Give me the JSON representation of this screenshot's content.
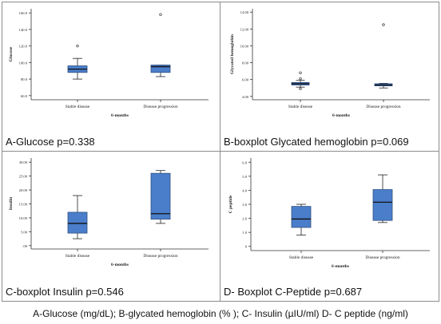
{
  "panels": [
    {
      "caption": "A-Glucose  p=0.338"
    },
    {
      "caption": "B-boxplot Glycated hemoglobin p=0.069"
    },
    {
      "caption": "C-boxplot Insulin p=0.546"
    },
    {
      "caption": "D- Boxplot C-Peptide p=0.687"
    }
  ],
  "footnote": "A-Glucose (mg/dL); B-glycated hemoglobin (% ); C- Insulin (µIU/ml) D- C peptide  (ng/ml)",
  "colors": {
    "box_fill": "#4a7ecb",
    "box_stroke": "#2f4f7f",
    "border": "#8c8c8c"
  },
  "chart_data": [
    {
      "type": "boxplot",
      "ylabel": "Glucose",
      "xlabel": "6-months",
      "categories": [
        "Stable disease",
        "Disease progression"
      ],
      "yticks": [
        60.0,
        80.0,
        100.0,
        120.0,
        140.0,
        160.0
      ],
      "ytick_labels": [
        "60.0",
        "80.0",
        "100.0",
        "120.0",
        "140.0",
        "160.0"
      ],
      "ylim": [
        55,
        165
      ],
      "boxes": [
        {
          "whisker_low": 80,
          "q1": 88,
          "median": 92,
          "q3": 96,
          "whisker_high": 105,
          "outliers": [
            120
          ]
        },
        {
          "whisker_low": 83,
          "q1": 88,
          "median": 95,
          "q3": 97,
          "whisker_high": 97,
          "outliers": [
            158
          ]
        }
      ]
    },
    {
      "type": "boxplot",
      "ylabel": "Glycated hemoglobin",
      "xlabel": "6-months",
      "categories": [
        "Stable disease",
        "Disease progression"
      ],
      "yticks": [
        4.0,
        6.0,
        8.0,
        10.0,
        12.0,
        14.0
      ],
      "ytick_labels": [
        "4.00",
        "6.00",
        "8.00",
        "10.00",
        "12.00",
        "14.00"
      ],
      "ylim": [
        3.6,
        14.4
      ],
      "boxes": [
        {
          "whisker_low": 5.1,
          "q1": 5.35,
          "median": 5.5,
          "q3": 5.65,
          "whisker_high": 5.9,
          "outliers": [
            4.9,
            6.1,
            6.8
          ]
        },
        {
          "whisker_low": 5.0,
          "q1": 5.25,
          "median": 5.35,
          "q3": 5.5,
          "whisker_high": 5.55,
          "outliers": [
            12.5
          ]
        }
      ]
    },
    {
      "type": "boxplot",
      "ylabel": "Insulin",
      "xlabel": "6-months",
      "categories": [
        "Stable disease",
        "Disease progression"
      ],
      "yticks": [
        0,
        5,
        10,
        15,
        20,
        25,
        30
      ],
      "ytick_labels": [
        ".00",
        "5.00",
        "10.00",
        "15.00",
        "20.00",
        "25.00",
        "30.00"
      ],
      "ylim": [
        -1.2,
        31.5
      ],
      "boxes": [
        {
          "whisker_low": 2.5,
          "q1": 4.5,
          "median": 8.0,
          "q3": 12.0,
          "whisker_high": 18.0,
          "outliers": []
        },
        {
          "whisker_low": 8.0,
          "q1": 9.5,
          "median": 11.5,
          "q3": 26.0,
          "whisker_high": 27.0,
          "outliers": []
        }
      ]
    },
    {
      "type": "boxplot",
      "ylabel": "C peptide",
      "xlabel": "6-months",
      "categories": [
        "Stable disease",
        "Disease progression"
      ],
      "yticks": [
        0,
        1,
        2,
        3,
        4,
        5,
        6
      ],
      "ytick_labels": [
        "0",
        "1.0",
        "2.0",
        "3.0",
        "4.0",
        "5.0",
        "6.0"
      ],
      "ylim": [
        -0.3,
        6.3
      ],
      "boxes": [
        {
          "whisker_low": 0.8,
          "q1": 1.35,
          "median": 1.95,
          "q3": 2.85,
          "whisker_high": 3.0,
          "outliers": []
        },
        {
          "whisker_low": 1.7,
          "q1": 1.85,
          "median": 3.15,
          "q3": 4.05,
          "whisker_high": 5.1,
          "outliers": []
        }
      ]
    }
  ]
}
